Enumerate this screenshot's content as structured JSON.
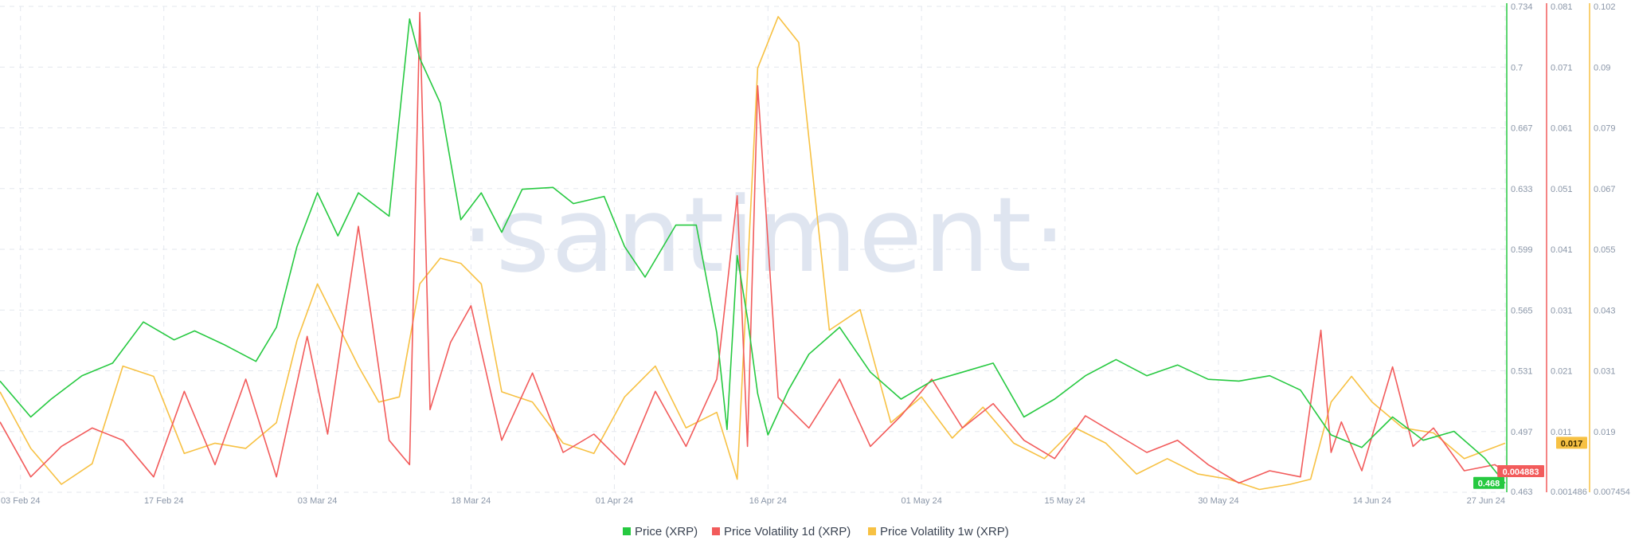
{
  "watermark": "·santiment·",
  "chart_data": {
    "type": "line",
    "x_start": "2024-02-01",
    "x_end": "2024-06-27",
    "x_ticks": [
      {
        "label": "03 Feb 24",
        "date": "2024-02-03"
      },
      {
        "label": "17 Feb 24",
        "date": "2024-02-17"
      },
      {
        "label": "03 Mar 24",
        "date": "2024-03-03"
      },
      {
        "label": "18 Mar 24",
        "date": "2024-03-18"
      },
      {
        "label": "01 Apr 24",
        "date": "2024-04-01"
      },
      {
        "label": "16 Apr 24",
        "date": "2024-04-16"
      },
      {
        "label": "01 May 24",
        "date": "2024-05-01"
      },
      {
        "label": "15 May 24",
        "date": "2024-05-15"
      },
      {
        "label": "30 May 24",
        "date": "2024-05-30"
      },
      {
        "label": "14 Jun 24",
        "date": "2024-06-14"
      },
      {
        "label": "27 Jun 24",
        "date": "2024-06-27"
      }
    ],
    "axes": [
      {
        "id": "price",
        "color": "#26c940",
        "min": 0.463,
        "max": 0.734,
        "ticks": [
          "0.734",
          "0.7",
          "0.667",
          "0.633",
          "0.599",
          "0.565",
          "0.531",
          "0.497",
          "0.463"
        ],
        "current": "0.468"
      },
      {
        "id": "vol1d",
        "color": "#f25b5b",
        "min": 0.001486,
        "max": 0.081,
        "ticks": [
          "0.081",
          "0.071",
          "0.061",
          "0.051",
          "0.041",
          "0.031",
          "0.021",
          "0.011",
          "0.001486"
        ],
        "current": "0.004883"
      },
      {
        "id": "vol1w",
        "color": "#f7c143",
        "min": 0.007454,
        "max": 0.102,
        "ticks": [
          "0.102",
          "0.09",
          "0.079",
          "0.067",
          "0.055",
          "0.043",
          "0.031",
          "0.019",
          "0.007454"
        ],
        "current": "0.017"
      }
    ],
    "series": [
      {
        "name": "Price (XRP)",
        "axis": "price",
        "color": "#26c940",
        "dates": [
          "2024-02-01",
          "2024-02-04",
          "2024-02-06",
          "2024-02-09",
          "2024-02-12",
          "2024-02-15",
          "2024-02-18",
          "2024-02-20",
          "2024-02-23",
          "2024-02-26",
          "2024-02-28",
          "2024-03-01",
          "2024-03-03",
          "2024-03-05",
          "2024-03-07",
          "2024-03-10",
          "2024-03-12",
          "2024-03-13",
          "2024-03-15",
          "2024-03-17",
          "2024-03-19",
          "2024-03-21",
          "2024-03-23",
          "2024-03-26",
          "2024-03-28",
          "2024-03-31",
          "2024-04-02",
          "2024-04-04",
          "2024-04-07",
          "2024-04-09",
          "2024-04-11",
          "2024-04-12",
          "2024-04-13",
          "2024-04-14",
          "2024-04-15",
          "2024-04-16",
          "2024-04-18",
          "2024-04-20",
          "2024-04-23",
          "2024-04-26",
          "2024-04-29",
          "2024-05-02",
          "2024-05-05",
          "2024-05-08",
          "2024-05-11",
          "2024-05-14",
          "2024-05-17",
          "2024-05-20",
          "2024-05-23",
          "2024-05-26",
          "2024-05-29",
          "2024-06-01",
          "2024-06-04",
          "2024-06-07",
          "2024-06-10",
          "2024-06-13",
          "2024-06-16",
          "2024-06-19",
          "2024-06-22",
          "2024-06-25",
          "2024-06-27"
        ],
        "values": [
          0.525,
          0.505,
          0.515,
          0.528,
          0.535,
          0.558,
          0.548,
          0.553,
          0.545,
          0.536,
          0.555,
          0.6,
          0.63,
          0.606,
          0.63,
          0.617,
          0.727,
          0.705,
          0.68,
          0.615,
          0.63,
          0.608,
          0.632,
          0.633,
          0.624,
          0.628,
          0.6,
          0.583,
          0.612,
          0.612,
          0.552,
          0.498,
          0.595,
          0.56,
          0.518,
          0.495,
          0.52,
          0.54,
          0.555,
          0.53,
          0.515,
          0.525,
          0.53,
          0.535,
          0.505,
          0.515,
          0.528,
          0.537,
          0.528,
          0.534,
          0.526,
          0.525,
          0.528,
          0.52,
          0.495,
          0.488,
          0.505,
          0.492,
          0.497,
          0.482,
          0.468
        ]
      },
      {
        "name": "Price Volatility 1d (XRP)",
        "axis": "vol1d",
        "color": "#f25b5b",
        "dates": [
          "2024-02-01",
          "2024-02-04",
          "2024-02-07",
          "2024-02-10",
          "2024-02-13",
          "2024-02-16",
          "2024-02-19",
          "2024-02-22",
          "2024-02-25",
          "2024-02-28",
          "2024-03-02",
          "2024-03-04",
          "2024-03-07",
          "2024-03-10",
          "2024-03-12",
          "2024-03-13",
          "2024-03-14",
          "2024-03-16",
          "2024-03-18",
          "2024-03-21",
          "2024-03-24",
          "2024-03-27",
          "2024-03-30",
          "2024-04-02",
          "2024-04-05",
          "2024-04-08",
          "2024-04-11",
          "2024-04-13",
          "2024-04-14",
          "2024-04-15",
          "2024-04-17",
          "2024-04-20",
          "2024-04-23",
          "2024-04-26",
          "2024-04-29",
          "2024-05-02",
          "2024-05-05",
          "2024-05-08",
          "2024-05-11",
          "2024-05-14",
          "2024-05-17",
          "2024-05-20",
          "2024-05-23",
          "2024-05-26",
          "2024-05-29",
          "2024-06-01",
          "2024-06-04",
          "2024-06-07",
          "2024-06-09",
          "2024-06-10",
          "2024-06-11",
          "2024-06-13",
          "2024-06-16",
          "2024-06-18",
          "2024-06-20",
          "2024-06-23",
          "2024-06-26",
          "2024-06-27"
        ],
        "values": [
          0.013,
          0.004,
          0.009,
          0.012,
          0.01,
          0.004,
          0.018,
          0.006,
          0.02,
          0.004,
          0.027,
          0.011,
          0.045,
          0.01,
          0.006,
          0.08,
          0.015,
          0.026,
          0.032,
          0.01,
          0.021,
          0.008,
          0.011,
          0.006,
          0.018,
          0.009,
          0.02,
          0.05,
          0.009,
          0.068,
          0.017,
          0.012,
          0.02,
          0.009,
          0.014,
          0.02,
          0.012,
          0.016,
          0.01,
          0.007,
          0.014,
          0.011,
          0.008,
          0.01,
          0.006,
          0.003,
          0.005,
          0.004,
          0.028,
          0.008,
          0.013,
          0.005,
          0.022,
          0.009,
          0.012,
          0.005,
          0.006,
          0.004883
        ]
      },
      {
        "name": "Price Volatility 1w (XRP)",
        "axis": "vol1w",
        "color": "#f7c143",
        "dates": [
          "2024-02-01",
          "2024-02-04",
          "2024-02-07",
          "2024-02-10",
          "2024-02-13",
          "2024-02-16",
          "2024-02-19",
          "2024-02-22",
          "2024-02-25",
          "2024-02-28",
          "2024-03-01",
          "2024-03-03",
          "2024-03-05",
          "2024-03-07",
          "2024-03-09",
          "2024-03-11",
          "2024-03-13",
          "2024-03-15",
          "2024-03-17",
          "2024-03-19",
          "2024-03-21",
          "2024-03-24",
          "2024-03-27",
          "2024-03-30",
          "2024-04-02",
          "2024-04-05",
          "2024-04-08",
          "2024-04-11",
          "2024-04-13",
          "2024-04-15",
          "2024-04-17",
          "2024-04-19",
          "2024-04-22",
          "2024-04-25",
          "2024-04-28",
          "2024-05-01",
          "2024-05-04",
          "2024-05-07",
          "2024-05-10",
          "2024-05-13",
          "2024-05-16",
          "2024-05-19",
          "2024-05-22",
          "2024-05-25",
          "2024-05-28",
          "2024-05-31",
          "2024-06-03",
          "2024-06-06",
          "2024-06-08",
          "2024-06-10",
          "2024-06-12",
          "2024-06-14",
          "2024-06-17",
          "2024-06-20",
          "2024-06-23",
          "2024-06-27"
        ],
        "values": [
          0.027,
          0.016,
          0.009,
          0.013,
          0.032,
          0.03,
          0.015,
          0.017,
          0.016,
          0.021,
          0.037,
          0.048,
          0.04,
          0.032,
          0.025,
          0.026,
          0.048,
          0.053,
          0.052,
          0.048,
          0.027,
          0.025,
          0.017,
          0.015,
          0.026,
          0.032,
          0.02,
          0.023,
          0.01,
          0.09,
          0.1,
          0.095,
          0.039,
          0.043,
          0.021,
          0.026,
          0.018,
          0.024,
          0.017,
          0.014,
          0.02,
          0.017,
          0.011,
          0.014,
          0.011,
          0.01,
          0.008,
          0.009,
          0.01,
          0.025,
          0.03,
          0.025,
          0.02,
          0.019,
          0.014,
          0.017
        ]
      }
    ]
  }
}
